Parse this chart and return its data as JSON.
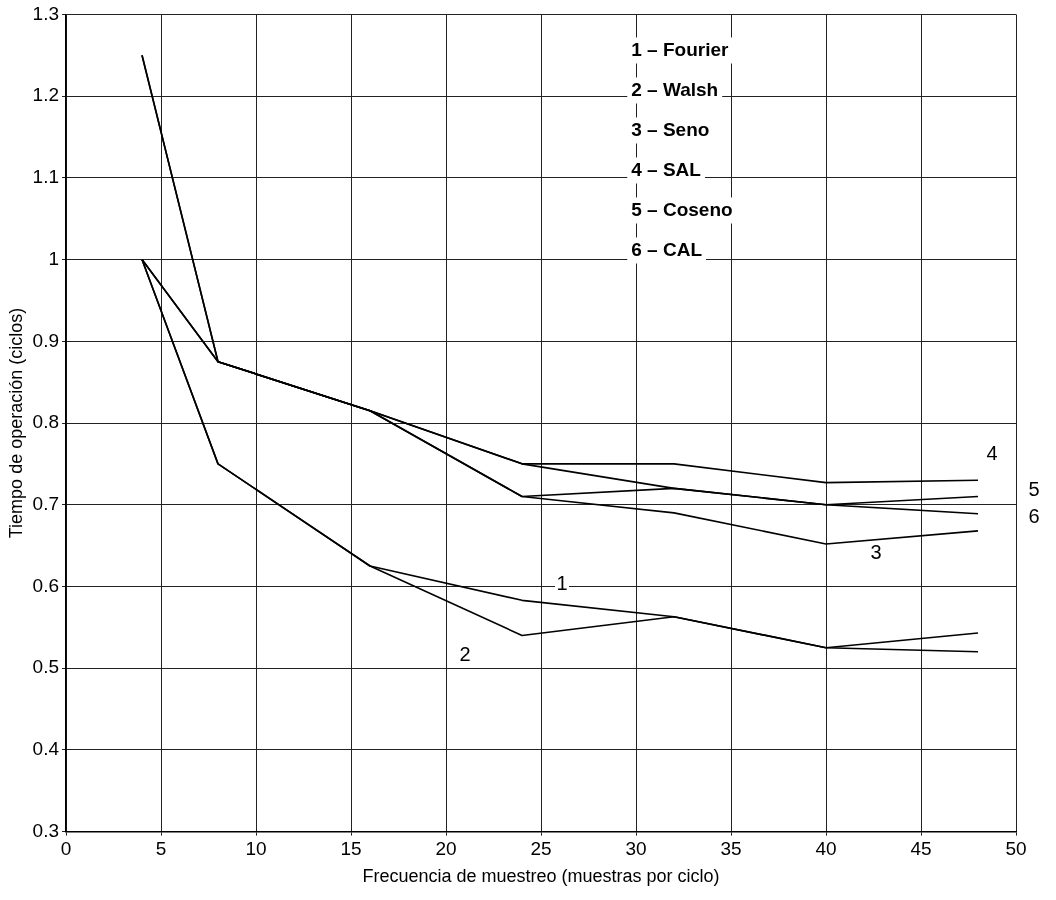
{
  "chart_data": {
    "type": "line",
    "xlabel": "Frecuencia de muestreo (muestras por ciclo)",
    "ylabel": "Tiempo de operación (ciclos)",
    "xlim": [
      0,
      50
    ],
    "xticks": [
      0,
      5,
      10,
      15,
      20,
      25,
      30,
      35,
      40,
      45,
      50
    ],
    "ylim": [
      0.3,
      1.3
    ],
    "yticks": [
      0.3,
      0.4,
      0.5,
      0.6,
      0.7,
      0.8,
      0.9,
      1,
      1.1,
      1.2,
      1.3
    ],
    "grid": true,
    "marker": "none",
    "line_style": "solid",
    "x": [
      4,
      8,
      16,
      24,
      32,
      40,
      48
    ],
    "series": [
      {
        "name": "1",
        "color": "#000000",
        "values": [
          1.0,
          0.75,
          0.625,
          0.583,
          0.563,
          0.525,
          0.52
        ]
      },
      {
        "name": "2",
        "color": "#000000",
        "values": [
          1.0,
          0.75,
          0.625,
          0.54,
          0.563,
          0.525,
          0.543
        ]
      },
      {
        "name": "3",
        "color": "#000000",
        "values": [
          1.25,
          0.875,
          0.815,
          0.71,
          0.69,
          0.652,
          0.668
        ]
      },
      {
        "name": "4",
        "color": "#000000",
        "values": [
          1.0,
          0.875,
          0.815,
          0.75,
          0.75,
          0.727,
          0.73
        ]
      },
      {
        "name": "5",
        "color": "#000000",
        "values": [
          1.25,
          0.875,
          0.815,
          0.71,
          0.72,
          0.7,
          0.71
        ]
      },
      {
        "name": "6",
        "color": "#000000",
        "values": [
          1.0,
          0.875,
          0.815,
          0.75,
          0.72,
          0.7,
          0.689
        ]
      }
    ],
    "annotations": [
      "1 – Fourier",
      "2 – Walsh",
      "3 – Seno",
      "4 – SAL",
      "5 – Coseno",
      "6 – CAL"
    ]
  }
}
